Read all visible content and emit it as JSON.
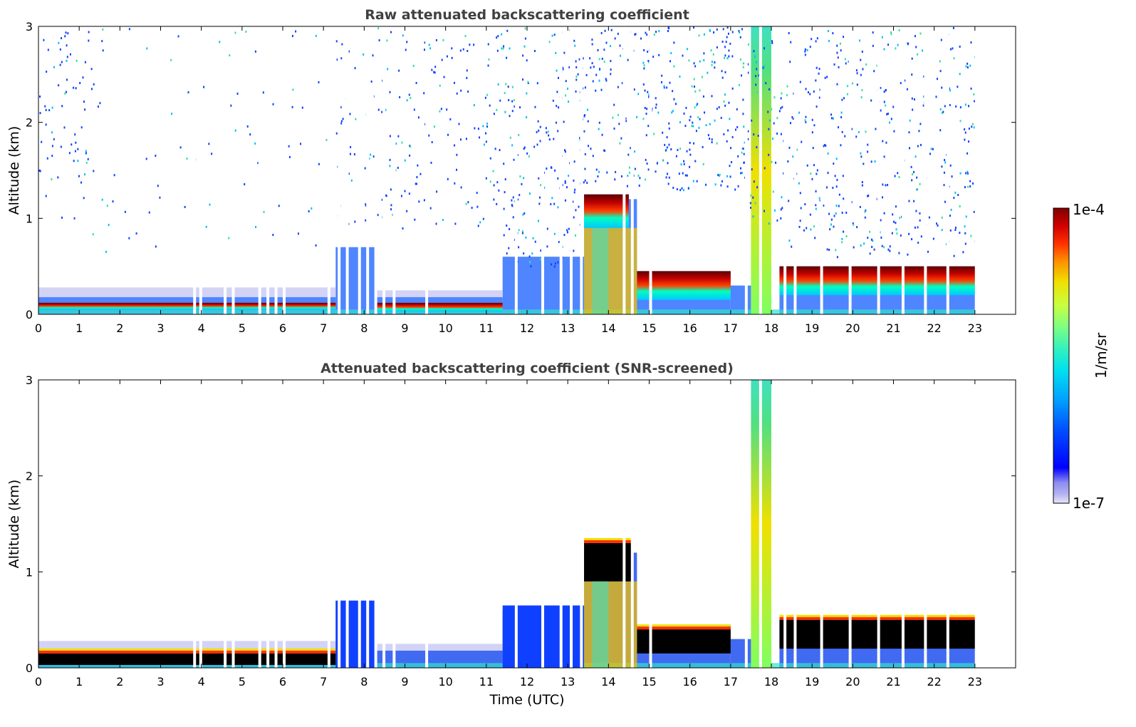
{
  "chart_data": [
    {
      "type": "heatmap",
      "title": "Raw attenuated backscattering coefficient",
      "xlabel": "",
      "ylabel": "Altitude (km)",
      "xlim": [
        0,
        24
      ],
      "ylim": [
        0,
        3
      ],
      "xticks": [
        "0",
        "1",
        "2",
        "3",
        "4",
        "5",
        "6",
        "7",
        "8",
        "9",
        "10",
        "11",
        "12",
        "13",
        "14",
        "15",
        "16",
        "17",
        "18",
        "19",
        "20",
        "21",
        "22",
        "23"
      ],
      "yticks": [
        "0",
        "1",
        "2",
        "3"
      ],
      "color_scale": "log",
      "layers": [
        {
          "x_start": 0.0,
          "x_end": 7.3,
          "y_bottom": 0.05,
          "y_top": 0.12,
          "value": "1e-4"
        },
        {
          "x_start": 8.3,
          "x_end": 11.4,
          "y_bottom": 0.03,
          "y_top": 0.12,
          "value": "1e-4"
        },
        {
          "x_start": 13.4,
          "x_end": 14.5,
          "y_bottom": 0.9,
          "y_top": 1.25,
          "value": "8e-5"
        },
        {
          "x_start": 14.7,
          "x_end": 17.0,
          "y_bottom": 0.15,
          "y_top": 0.45,
          "value": "1e-4"
        },
        {
          "x_start": 17.5,
          "x_end": 18.0,
          "y_bottom": 0.0,
          "y_top": 3.0,
          "value": "3e-5"
        },
        {
          "x_start": 18.2,
          "x_end": 23.0,
          "y_bottom": 0.2,
          "y_top": 0.5,
          "value": "1e-4"
        }
      ]
    },
    {
      "type": "heatmap",
      "title": "Attenuated backscattering coefficient (SNR-screened)",
      "xlabel": "Time (UTC)",
      "ylabel": "Altitude (km)",
      "xlim": [
        0,
        24
      ],
      "ylim": [
        0,
        3
      ],
      "xticks": [
        "0",
        "1",
        "2",
        "3",
        "4",
        "5",
        "6",
        "7",
        "8",
        "9",
        "10",
        "11",
        "12",
        "13",
        "14",
        "15",
        "16",
        "17",
        "18",
        "19",
        "20",
        "21",
        "22",
        "23"
      ],
      "yticks": [
        "0",
        "1",
        "2",
        "3"
      ],
      "color_scale": "log",
      "layers": [
        {
          "x_start": 0.0,
          "x_end": 7.3,
          "y_bottom": 0.03,
          "y_top": 0.15,
          "value": "saturated"
        },
        {
          "x_start": 7.3,
          "x_end": 8.3,
          "y_bottom": 0.0,
          "y_top": 0.7,
          "value": "1e-6"
        },
        {
          "x_start": 11.4,
          "x_end": 13.4,
          "y_bottom": 0.0,
          "y_top": 0.65,
          "value": "1e-6"
        },
        {
          "x_start": 13.4,
          "x_end": 14.6,
          "y_bottom": 0.9,
          "y_top": 1.3,
          "value": "saturated"
        },
        {
          "x_start": 14.7,
          "x_end": 17.0,
          "y_bottom": 0.15,
          "y_top": 0.4,
          "value": "saturated"
        },
        {
          "x_start": 17.5,
          "x_end": 18.0,
          "y_bottom": 0.0,
          "y_top": 3.0,
          "value": "3e-5"
        },
        {
          "x_start": 18.2,
          "x_end": 23.0,
          "y_bottom": 0.2,
          "y_top": 0.5,
          "value": "saturated"
        }
      ]
    }
  ],
  "colorbar": {
    "label": "1/m/sr",
    "max_label": "1e-4",
    "min_label": "1e-7",
    "colors": [
      "#e6e6fa",
      "#b4b4f0",
      "#8c8cf0",
      "#0000ff",
      "#0050ff",
      "#00a0ff",
      "#00e0f0",
      "#30f0c0",
      "#80ff80",
      "#c8ff40",
      "#f0e000",
      "#ff9000",
      "#ff3000",
      "#d00000",
      "#800000"
    ]
  }
}
